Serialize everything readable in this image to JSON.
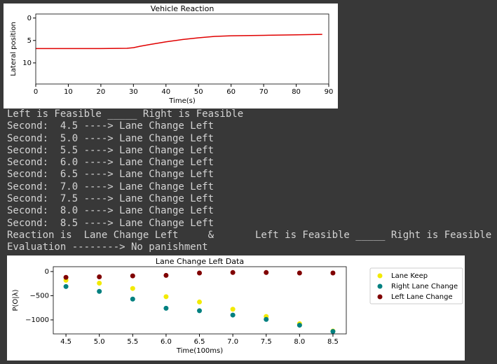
{
  "chart_data": [
    {
      "type": "line",
      "title": "Vehicle Reaction",
      "xlabel": "Time(s)",
      "ylabel": "Lateral position",
      "x": [
        0,
        10,
        20,
        28,
        30,
        32,
        35,
        40,
        45,
        50,
        55,
        60,
        70,
        80,
        88
      ],
      "values": [
        6.8,
        6.8,
        6.8,
        6.75,
        6.6,
        6.3,
        5.9,
        5.3,
        4.8,
        4.4,
        4.1,
        3.95,
        3.85,
        3.75,
        3.65
      ],
      "color": "#e00000",
      "xlim": [
        0,
        90
      ],
      "xticks": [
        0,
        10,
        20,
        30,
        40,
        50,
        60,
        70,
        80,
        90
      ],
      "ylim": [
        14.7,
        -0.9
      ],
      "yticks": [
        0,
        5,
        10
      ]
    },
    {
      "type": "scatter",
      "title": "Lane Change Left Data",
      "xlabel": "Time(100ms)",
      "ylabel": "P(O|λ)",
      "x": [
        4.5,
        5.0,
        5.5,
        6.0,
        6.5,
        7.0,
        7.5,
        8.0,
        8.5
      ],
      "series": [
        {
          "name": "Lane Keep",
          "color": "#f2ea00",
          "values": [
            -180,
            -240,
            -350,
            -520,
            -630,
            -780,
            -930,
            -1080,
            -1230
          ]
        },
        {
          "name": "Right Lane Change",
          "color": "#008080",
          "values": [
            -310,
            -410,
            -570,
            -760,
            -810,
            -900,
            -990,
            -1110,
            -1240
          ]
        },
        {
          "name": "Left Lane Change",
          "color": "#800000",
          "values": [
            -120,
            -110,
            -90,
            -80,
            -30,
            -20,
            -20,
            -30,
            -30
          ]
        }
      ],
      "legend": "outside right",
      "xlim": [
        4.31,
        8.7
      ],
      "xticks": [
        4.5,
        {
          "value": 5,
          "label": "5.0"
        },
        5.5,
        {
          "value": 6,
          "label": "6.0"
        },
        6.5,
        {
          "value": 7,
          "label": "7.0"
        },
        7.5,
        {
          "value": 8,
          "label": "8.0"
        },
        8.5
      ],
      "ylim": [
        -1290,
        100
      ],
      "yticks": [
        {
          "value": 0,
          "label": "0"
        },
        {
          "value": -500,
          "label": "−500"
        },
        {
          "value": -1000,
          "label": "−1000"
        }
      ]
    }
  ],
  "console": {
    "lines": [
      "Left is Feasible _____ Right is Feasible",
      "Second:  4.5 ----> Lane Change Left",
      "Second:  5.0 ----> Lane Change Left",
      "Second:  5.5 ----> Lane Change Left",
      "Second:  6.0 ----> Lane Change Left",
      "Second:  6.5 ----> Lane Change Left",
      "Second:  7.0 ----> Lane Change Left",
      "Second:  7.5 ----> Lane Change Left",
      "Second:  8.0 ----> Lane Change Left",
      "Second:  8.5 ----> Lane Change Left",
      "Reaction is  Lane Change Left     &       Left is Feasible _____ Right is Feasible",
      "Evaluation --------> No panishment"
    ]
  }
}
